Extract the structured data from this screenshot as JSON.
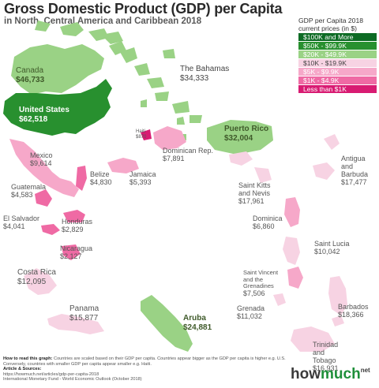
{
  "title": "Gross Domestic Product (GDP) per Capita",
  "subtitle": "in North, Central America and Caribbean 2018",
  "legend": {
    "title_line1": "GDP per Capita 2018",
    "title_line2": "current prices (in $)",
    "items": [
      {
        "label": "$100K and More",
        "color": "#0d6b24"
      },
      {
        "label": "$50K - $99.9K",
        "color": "#28902f"
      },
      {
        "label": "$20K - $49.9K",
        "color": "#9ad285"
      },
      {
        "label": "$10K - $19.9K",
        "color": "#f7d3e3"
      },
      {
        "label": "$5K - $9.9K",
        "color": "#f6a8c9"
      },
      {
        "label": "$1K - $4.9K",
        "color": "#ef6aa4"
      },
      {
        "label": "Less than $1K",
        "color": "#d81b72"
      }
    ]
  },
  "colors": {
    "band_50k_99k": "#28902f",
    "band_20k_49k": "#9ad285",
    "band_10k_19k": "#f7d3e3",
    "band_5k_9k": "#f6a8c9",
    "band_1k_4k": "#ef6aa4",
    "band_under_1k": "#d81b72"
  },
  "countries": [
    {
      "name": "Canada",
      "value": "$46,733"
    },
    {
      "name": "United States",
      "value": "$62,518"
    },
    {
      "name": "The Bahamas",
      "value": "$34,333"
    },
    {
      "name": "Haiti",
      "value": "$870"
    },
    {
      "name": "Dominican Rep.",
      "value": "$7,891"
    },
    {
      "name": "Puerto Rico",
      "value": "$32,004"
    },
    {
      "name": "Mexico",
      "value": "$9,614"
    },
    {
      "name": "Belize",
      "value": "$4,830"
    },
    {
      "name": "Jamaica",
      "value": "$5,393"
    },
    {
      "name": "Guatemala",
      "value": "$4,583"
    },
    {
      "name": "El Salvador",
      "value": "$4,041"
    },
    {
      "name": "Honduras",
      "value": "$2,829"
    },
    {
      "name": "Nicaragua",
      "value": "$2,127"
    },
    {
      "name": "Costa Rica",
      "value": "$12,095"
    },
    {
      "name": "Panama",
      "value": "$15,877"
    },
    {
      "name": "Aruba",
      "value": "$24,881"
    },
    {
      "name": "Antigua and Barbuda",
      "name_line1": "Antigua",
      "name_line2": "and",
      "name_line3": "Barbuda",
      "value": "$17,477"
    },
    {
      "name": "Saint Kitts and Nevis",
      "name_line1": "Saint Kitts",
      "name_line2": "and Nevis",
      "value": "$17,961"
    },
    {
      "name": "Dominica",
      "value": "$6,860"
    },
    {
      "name": "Saint Lucia",
      "value": "$10,042"
    },
    {
      "name": "Saint Vincent and the Grenadines",
      "name_line1": "Saint Vincent",
      "name_line2": "and the",
      "name_line3": "Grenadines",
      "value": "$7,506"
    },
    {
      "name": "Grenada",
      "value": "$11,032"
    },
    {
      "name": "Barbados",
      "value": "$18,366"
    },
    {
      "name": "Trinidad and Tobago",
      "name_line1": "Trinidad",
      "name_line2": "and",
      "name_line3": "Tobago",
      "value": "$16,931"
    }
  ],
  "footer": {
    "howto_label": "How to read this graph:",
    "howto_text": "Countries are scaled based on their GDP per capita. Countries appear bigger as the GDP per capita is higher e.g. U.S. Conversely, countries with smaller GDP per capita appear smaller e.g. Haiti.",
    "sources_label": "Article & Sources:",
    "source1": "https://howmuch.net/articles/gdp-per-capita-2018",
    "source2": "International Monetary Fund - World Economic Outlook (October 2018)"
  },
  "logo": {
    "how": "how",
    "much": "much",
    "net": "net"
  }
}
